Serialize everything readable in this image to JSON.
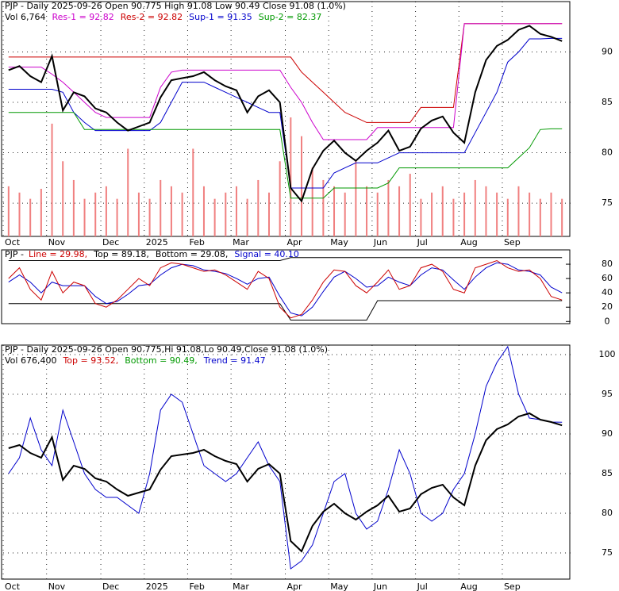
{
  "chart_data": [
    {
      "type": "line",
      "title": "PJP - Daily 2025-09-26 Open 90.775  High 91.08  Low 90.49  Close 91.08 (1.0%)",
      "legend": [
        {
          "text": "Vol 6,764",
          "color": "#000000"
        },
        {
          "text": "Res-1 = 92.82",
          "color": "#cc00cc"
        },
        {
          "text": "Res-2 = 92.82",
          "color": "#cc0000"
        },
        {
          "text": "Sup-1 = 91.35",
          "color": "#0000cc"
        },
        {
          "text": "Sup-2 = 82.37",
          "color": "#009900"
        }
      ],
      "categories": [
        "Oct",
        null,
        null,
        null,
        "Nov",
        null,
        null,
        null,
        null,
        "Dec",
        null,
        null,
        null,
        "2025",
        null,
        null,
        null,
        "Feb",
        null,
        null,
        null,
        "Mar",
        null,
        null,
        null,
        null,
        "Apr",
        null,
        null,
        null,
        "May",
        null,
        null,
        null,
        "Jun",
        null,
        null,
        null,
        "Jul",
        null,
        null,
        null,
        "Aug",
        null,
        null,
        null,
        "Sep",
        null,
        null,
        null,
        null,
        null
      ],
      "volume": {
        "color": "#f08080",
        "values": [
          40000,
          35000,
          30000,
          38000,
          90000,
          60000,
          45000,
          30000,
          35000,
          40000,
          30000,
          70000,
          35000,
          30000,
          45000,
          40000,
          35000,
          70000,
          40000,
          30000,
          35000,
          40000,
          30000,
          45000,
          35000,
          60000,
          95000,
          80000,
          55000,
          45000,
          40000,
          35000,
          60000,
          40000,
          35000,
          45000,
          40000,
          50000,
          30000,
          35000,
          40000,
          30000,
          35000,
          45000,
          40000,
          35000,
          30000,
          40000,
          35000,
          30000,
          35000,
          30000
        ]
      },
      "series": [
        {
          "color": "#cc0000",
          "values": [
            89.5,
            89.5,
            89.5,
            89.5,
            89.5,
            89.5,
            89.5,
            89.5,
            89.5,
            89.5,
            89.5,
            89.5,
            89.5,
            89.5,
            89.5,
            89.5,
            89.5,
            89.5,
            89.5,
            89.5,
            89.5,
            89.5,
            89.5,
            89.5,
            89.5,
            89.5,
            89.5,
            88,
            87,
            86,
            85,
            84,
            83.5,
            83,
            83,
            83,
            83,
            83,
            84.5,
            84.5,
            84.5,
            84.5,
            92.82,
            92.82,
            92.82,
            92.82,
            92.82,
            92.82,
            92.82,
            92.82,
            92.82,
            92.82
          ]
        },
        {
          "color": "#cc00cc",
          "values": [
            88.5,
            88.5,
            88.5,
            88.5,
            87.8,
            87,
            86,
            85,
            84,
            83.5,
            83.5,
            83.5,
            83.5,
            83.5,
            86.5,
            88,
            88.2,
            88.2,
            88.2,
            88.2,
            88.2,
            88.2,
            88.2,
            88.2,
            88.2,
            88.2,
            86.5,
            85,
            83,
            81.3,
            81.3,
            81.3,
            81.3,
            81.3,
            82.5,
            82.5,
            82.5,
            82.5,
            82.5,
            82.5,
            82.5,
            82.5,
            92.8,
            92.8,
            92.8,
            92.8,
            92.8,
            92.8,
            92.8,
            92.8,
            92.82,
            92.82
          ]
        },
        {
          "color": "#0000cc",
          "values": [
            86.3,
            86.3,
            86.3,
            86.3,
            86.3,
            86,
            84,
            83,
            82.2,
            82.2,
            82.2,
            82.2,
            82.2,
            82.2,
            83,
            85,
            87,
            87,
            87,
            86.5,
            86,
            85.5,
            85,
            84.5,
            84,
            84,
            76.5,
            76.5,
            76.5,
            76.5,
            78,
            78.5,
            79,
            79,
            79,
            79.5,
            80,
            80,
            80,
            80,
            80,
            80,
            80,
            82,
            84,
            86,
            89,
            90,
            91.3,
            91.3,
            91.35,
            91.35
          ]
        },
        {
          "color": "#009900",
          "values": [
            84,
            84,
            84,
            84,
            84,
            84,
            84,
            82.3,
            82.3,
            82.3,
            82.3,
            82.3,
            82.3,
            82.3,
            82.3,
            82.3,
            82.3,
            82.3,
            82.3,
            82.3,
            82.3,
            82.3,
            82.3,
            82.3,
            82.3,
            82.3,
            75.5,
            75.5,
            75.5,
            75.5,
            76.5,
            76.5,
            76.5,
            76.5,
            76.5,
            77,
            78.5,
            78.5,
            78.5,
            78.5,
            78.5,
            78.5,
            78.5,
            78.5,
            78.5,
            78.5,
            78.5,
            79.5,
            80.5,
            82.3,
            82.37,
            82.37
          ]
        },
        {
          "color": "#000000",
          "width": 2,
          "values": [
            88.2,
            88.6,
            87.6,
            87.0,
            89.6,
            84.2,
            86.0,
            85.6,
            84.4,
            84.0,
            83.0,
            82.2,
            82.6,
            83.0,
            85.5,
            87.2,
            87.4,
            87.6,
            88.0,
            87.2,
            86.6,
            86.2,
            84.0,
            85.6,
            86.2,
            85.0,
            76.5,
            75.2,
            78.4,
            80.2,
            81.2,
            80.0,
            79.2,
            80.2,
            81.0,
            82.2,
            80.2,
            80.6,
            82.4,
            83.2,
            83.6,
            82.0,
            81.0,
            86.0,
            89.2,
            90.6,
            91.2,
            92.2,
            92.6,
            91.8,
            91.5,
            91.08
          ]
        }
      ],
      "ylim": [
        71.7,
        95
      ],
      "yticks": [
        75,
        80,
        85,
        90
      ],
      "grid": true
    },
    {
      "type": "line",
      "title": "PJP -",
      "legend": [
        {
          "text": "Line = 29.98,",
          "color": "#cc0000"
        },
        {
          "text": "Top = 89.18,",
          "color": "#000000"
        },
        {
          "text": "Bottom = 29.08,",
          "color": "#000000"
        },
        {
          "text": "Signal = 40.10",
          "color": "#0000cc"
        }
      ],
      "series": [
        {
          "color": "#000000",
          "values": [
            85,
            85,
            85,
            85,
            85,
            85,
            85,
            85,
            85,
            85,
            85,
            85,
            85,
            85,
            85,
            85,
            85,
            85,
            85,
            85,
            85,
            85,
            85,
            85,
            85,
            85,
            89.18,
            89.18,
            89.18,
            89.18,
            89.18,
            89.18,
            89.18,
            89.18,
            89.18,
            89.18,
            89.18,
            89.18,
            89.18,
            89.18,
            89.18,
            89.18,
            89.18,
            89.18,
            89.18,
            89.18,
            89.18,
            89.18,
            89.18,
            89.18,
            89.18,
            89.18
          ]
        },
        {
          "color": "#000000",
          "values": [
            25,
            25,
            25,
            25,
            25,
            25,
            25,
            25,
            25,
            25,
            25,
            25,
            25,
            25,
            25,
            25,
            25,
            25,
            25,
            25,
            25,
            25,
            25,
            25,
            25,
            25,
            2,
            2,
            2,
            2,
            2,
            2,
            2,
            2,
            29.08,
            29.08,
            29.08,
            29.08,
            29.08,
            29.08,
            29.08,
            29.08,
            29.08,
            29.08,
            29.08,
            29.08,
            29.08,
            29.08,
            29.08,
            29.08,
            29.08,
            29.08
          ]
        },
        {
          "color": "#0000cc",
          "values": [
            55,
            65,
            55,
            40,
            55,
            50,
            50,
            50,
            35,
            25,
            28,
            38,
            50,
            52,
            65,
            75,
            80,
            78,
            72,
            70,
            67,
            60,
            52,
            60,
            62,
            35,
            12,
            8,
            20,
            42,
            62,
            70,
            60,
            48,
            50,
            62,
            55,
            50,
            65,
            75,
            72,
            58,
            45,
            62,
            75,
            82,
            80,
            72,
            70,
            65,
            48,
            40.1
          ]
        },
        {
          "color": "#cc0000",
          "values": [
            60,
            75,
            45,
            30,
            70,
            40,
            55,
            50,
            25,
            20,
            30,
            45,
            60,
            50,
            75,
            82,
            80,
            75,
            70,
            72,
            65,
            55,
            45,
            70,
            60,
            20,
            5,
            10,
            30,
            55,
            72,
            70,
            50,
            40,
            55,
            72,
            45,
            50,
            75,
            80,
            70,
            45,
            40,
            75,
            80,
            85,
            75,
            70,
            72,
            60,
            35,
            29.98
          ]
        }
      ],
      "ylim": [
        -3,
        100
      ],
      "yticks": [
        0,
        20,
        40,
        60,
        80
      ],
      "grid": false
    },
    {
      "type": "line",
      "title": "PJP - Daily 2025-09-26 Open 90.775,Hi 91.08,Lo 90.49,Close 91.08 (1.0%)",
      "legend": [
        {
          "text": "Vol 676,400",
          "color": "#000000"
        },
        {
          "text": "Top = 93.52,",
          "color": "#cc0000"
        },
        {
          "text": "Bottom = 90.49,",
          "color": "#009900"
        },
        {
          "text": "Trend = 91.47",
          "color": "#0000cc"
        }
      ],
      "categories": [
        "Oct",
        null,
        null,
        null,
        "Nov",
        null,
        null,
        null,
        null,
        "Dec",
        null,
        null,
        null,
        "2025",
        null,
        null,
        null,
        "Feb",
        null,
        null,
        null,
        "Mar",
        null,
        null,
        null,
        null,
        "Apr",
        null,
        null,
        null,
        "May",
        null,
        null,
        null,
        "Jun",
        null,
        null,
        null,
        "Jul",
        null,
        null,
        null,
        "Aug",
        null,
        null,
        null,
        "Sep",
        null,
        null,
        null,
        null,
        null
      ],
      "series": [
        {
          "color": "#0000cc",
          "values": [
            85,
            87,
            92,
            88,
            86,
            93,
            89,
            85,
            83,
            82,
            82,
            81,
            80,
            85,
            93,
            95,
            94,
            90,
            86,
            85,
            84,
            85,
            87,
            89,
            86,
            84,
            73,
            74,
            76,
            80,
            84,
            85,
            80,
            78,
            79,
            83,
            88,
            85,
            80,
            79,
            80,
            83,
            85,
            90,
            96,
            99,
            101,
            95,
            92,
            91.8,
            91.5,
            91.47
          ]
        },
        {
          "color": "#000000",
          "width": 2,
          "values": [
            88.2,
            88.6,
            87.6,
            87.0,
            89.6,
            84.2,
            86.0,
            85.6,
            84.4,
            84.0,
            83.0,
            82.2,
            82.6,
            83.0,
            85.5,
            87.2,
            87.4,
            87.6,
            88.0,
            87.2,
            86.6,
            86.2,
            84.0,
            85.6,
            86.2,
            85.0,
            76.5,
            75.2,
            78.4,
            80.2,
            81.2,
            80.0,
            79.2,
            80.2,
            81.0,
            82.2,
            80.2,
            80.6,
            82.4,
            83.2,
            83.6,
            82.0,
            81.0,
            86.0,
            89.2,
            90.6,
            91.2,
            92.2,
            92.6,
            91.8,
            91.5,
            91.08
          ]
        }
      ],
      "ylim": [
        71.7,
        101.2
      ],
      "yticks": [
        75,
        80,
        85,
        90,
        95,
        100
      ],
      "grid": true
    }
  ]
}
